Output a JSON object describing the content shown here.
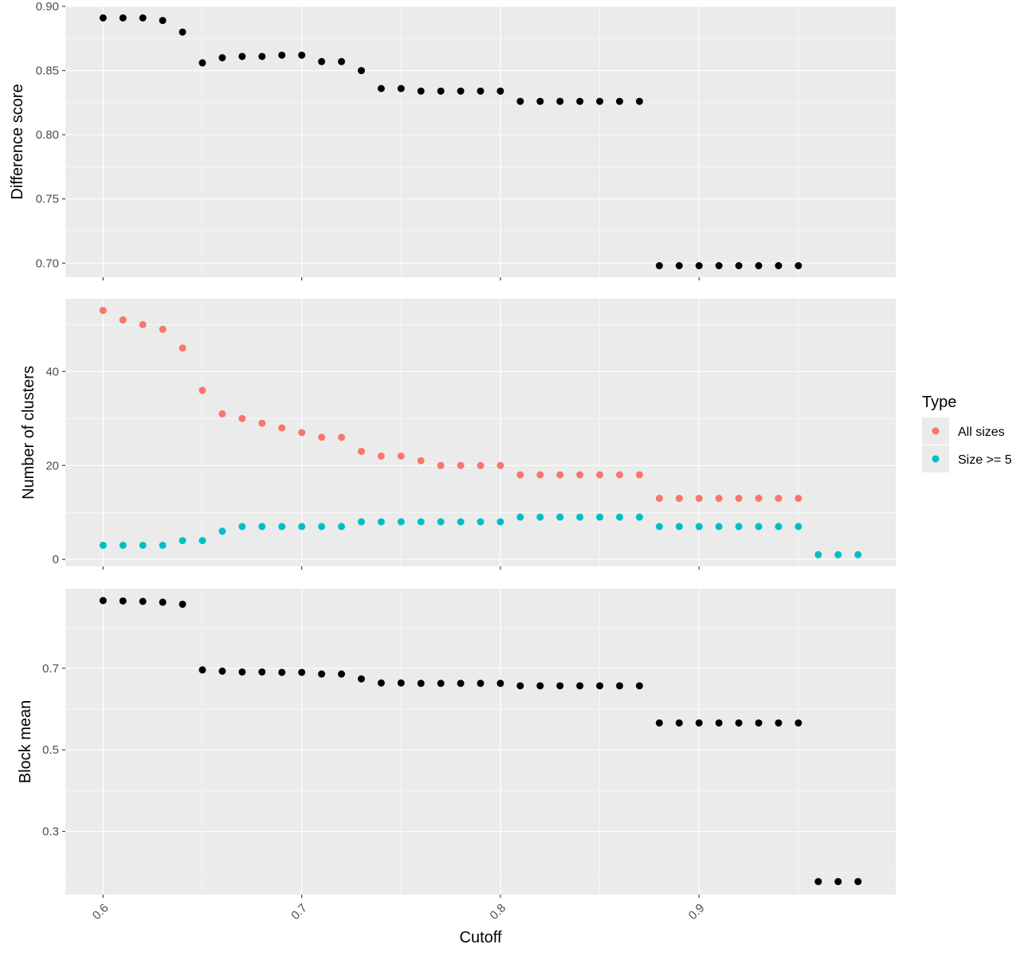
{
  "colors": {
    "panel_bg": "#ebebeb",
    "grid_major": "#ffffff",
    "black_points": "#000000",
    "all_sizes": "#f8766d",
    "size_ge5": "#00bfc4"
  },
  "chart_data": [
    {
      "type": "scatter",
      "xlabel": "",
      "ylabel": "Difference score",
      "xlim": [
        0.581,
        0.999
      ],
      "ylim": [
        0.689,
        0.9
      ],
      "y_ticks": [
        0.7,
        0.75,
        0.8,
        0.85,
        0.9
      ],
      "y_tick_labels": [
        "0.70",
        "0.75",
        "0.80",
        "0.85",
        "0.90"
      ],
      "series": [
        {
          "x": [
            0.6,
            0.61,
            0.62,
            0.63,
            0.64,
            0.65,
            0.66,
            0.67,
            0.68,
            0.69,
            0.7,
            0.71,
            0.72,
            0.73,
            0.74,
            0.75,
            0.76,
            0.77,
            0.78,
            0.79,
            0.8,
            0.81,
            0.82,
            0.83,
            0.84,
            0.85,
            0.86,
            0.87,
            0.88,
            0.89,
            0.9,
            0.91,
            0.92,
            0.93,
            0.94,
            0.95
          ],
          "y": [
            0.891,
            0.891,
            0.891,
            0.889,
            0.88,
            0.856,
            0.86,
            0.861,
            0.861,
            0.862,
            0.862,
            0.857,
            0.857,
            0.85,
            0.836,
            0.836,
            0.834,
            0.834,
            0.834,
            0.834,
            0.834,
            0.826,
            0.826,
            0.826,
            0.826,
            0.826,
            0.826,
            0.826,
            0.698,
            0.698,
            0.698,
            0.698,
            0.698,
            0.698,
            0.698,
            0.698
          ],
          "color": "#000000"
        }
      ]
    },
    {
      "type": "scatter",
      "xlabel": "",
      "ylabel": "Number of clusters",
      "xlim": [
        0.581,
        0.999
      ],
      "ylim": [
        -1.5,
        55.5
      ],
      "y_ticks": [
        0,
        20,
        40
      ],
      "y_tick_labels": [
        "0",
        "20",
        "40"
      ],
      "legend_title": "Type",
      "legend_position": "right",
      "series": [
        {
          "name": "All sizes",
          "color": "#f8766d",
          "x": [
            0.6,
            0.61,
            0.62,
            0.63,
            0.64,
            0.65,
            0.66,
            0.67,
            0.68,
            0.69,
            0.7,
            0.71,
            0.72,
            0.73,
            0.74,
            0.75,
            0.76,
            0.77,
            0.78,
            0.79,
            0.8,
            0.81,
            0.82,
            0.83,
            0.84,
            0.85,
            0.86,
            0.87,
            0.88,
            0.89,
            0.9,
            0.91,
            0.92,
            0.93,
            0.94,
            0.95
          ],
          "y": [
            53,
            51,
            50,
            49,
            45,
            36,
            31,
            30,
            29,
            28,
            27,
            26,
            26,
            23,
            22,
            22,
            21,
            20,
            20,
            20,
            20,
            18,
            18,
            18,
            18,
            18,
            18,
            18,
            13,
            13,
            13,
            13,
            13,
            13,
            13,
            13
          ]
        },
        {
          "name": "Size >= 5",
          "color": "#00bfc4",
          "x": [
            0.6,
            0.61,
            0.62,
            0.63,
            0.64,
            0.65,
            0.66,
            0.67,
            0.68,
            0.69,
            0.7,
            0.71,
            0.72,
            0.73,
            0.74,
            0.75,
            0.76,
            0.77,
            0.78,
            0.79,
            0.8,
            0.81,
            0.82,
            0.83,
            0.84,
            0.85,
            0.86,
            0.87,
            0.88,
            0.89,
            0.9,
            0.91,
            0.92,
            0.93,
            0.94,
            0.95,
            0.96,
            0.97,
            0.98
          ],
          "y": [
            3,
            3,
            3,
            3,
            4,
            4,
            6,
            7,
            7,
            7,
            7,
            7,
            7,
            8,
            8,
            8,
            8,
            8,
            8,
            8,
            8,
            9,
            9,
            9,
            9,
            9,
            9,
            9,
            7,
            7,
            7,
            7,
            7,
            7,
            7,
            7,
            1,
            1,
            1
          ]
        }
      ]
    },
    {
      "type": "scatter",
      "xlabel": "Cutoff",
      "ylabel": "Block mean",
      "xlim": [
        0.581,
        0.999
      ],
      "ylim": [
        0.145,
        0.895
      ],
      "y_ticks": [
        0.3,
        0.5,
        0.7
      ],
      "y_tick_labels": [
        "0.3",
        "0.5",
        "0.7"
      ],
      "x_ticks": [
        0.6,
        0.7,
        0.8,
        0.9
      ],
      "x_tick_labels": [
        "0.6",
        "0.7",
        "0.8",
        "0.9"
      ],
      "series": [
        {
          "x": [
            0.6,
            0.61,
            0.62,
            0.63,
            0.64,
            0.65,
            0.66,
            0.67,
            0.68,
            0.69,
            0.7,
            0.71,
            0.72,
            0.73,
            0.74,
            0.75,
            0.76,
            0.77,
            0.78,
            0.79,
            0.8,
            0.81,
            0.82,
            0.83,
            0.84,
            0.85,
            0.86,
            0.87,
            0.88,
            0.89,
            0.9,
            0.91,
            0.92,
            0.93,
            0.94,
            0.95,
            0.96,
            0.97,
            0.98
          ],
          "y": [
            0.866,
            0.865,
            0.864,
            0.862,
            0.857,
            0.696,
            0.693,
            0.691,
            0.691,
            0.69,
            0.69,
            0.686,
            0.686,
            0.674,
            0.664,
            0.664,
            0.663,
            0.663,
            0.663,
            0.663,
            0.663,
            0.657,
            0.657,
            0.657,
            0.657,
            0.657,
            0.657,
            0.657,
            0.566,
            0.566,
            0.566,
            0.566,
            0.566,
            0.566,
            0.566,
            0.566,
            0.177,
            0.177,
            0.177
          ],
          "color": "#000000"
        }
      ]
    }
  ]
}
